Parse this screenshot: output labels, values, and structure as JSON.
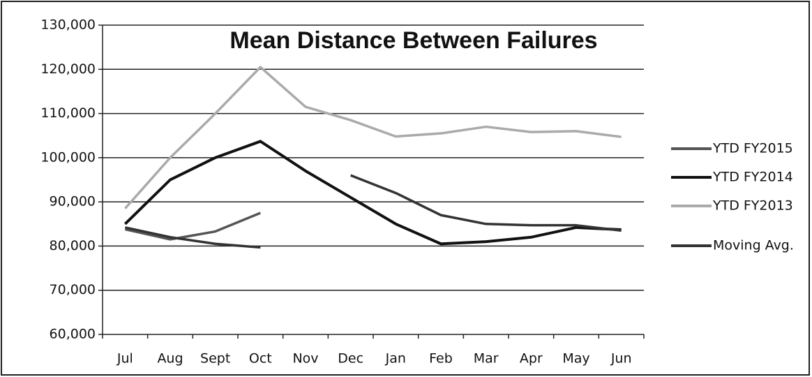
{
  "chart_data": {
    "type": "line",
    "title": "Mean Distance Between Failures",
    "categories": [
      "Jul",
      "Aug",
      "Sept",
      "Oct",
      "Nov",
      "Dec",
      "Jan",
      "Feb",
      "Mar",
      "Apr",
      "May",
      "Jun"
    ],
    "series": [
      {
        "name": "YTD FY2015",
        "color": "#555555",
        "values": [
          83800,
          81500,
          83300,
          87500,
          null,
          null,
          null,
          null,
          null,
          null,
          null,
          null
        ]
      },
      {
        "name": "YTD FY2014",
        "color": "#111111",
        "values": [
          85000,
          95000,
          100000,
          103700,
          97000,
          91000,
          85000,
          80500,
          81000,
          82000,
          84200,
          83700
        ]
      },
      {
        "name": "YTD FY2013",
        "color": "#aaaaaa",
        "values": [
          88500,
          100000,
          110000,
          120500,
          111500,
          108500,
          104800,
          105500,
          107000,
          105800,
          106000,
          104700
        ]
      },
      {
        "name": "Moving Avg.",
        "color": "#333333",
        "values": [
          84200,
          82000,
          80500,
          79700,
          null,
          96000,
          92000,
          87000,
          85000,
          84700,
          84700,
          83500
        ]
      }
    ],
    "ylim": [
      60000,
      130000
    ],
    "yticks": [
      {
        "value": 60000,
        "label": "60,000"
      },
      {
        "value": 70000,
        "label": "70,000"
      },
      {
        "value": 80000,
        "label": "80,000"
      },
      {
        "value": 90000,
        "label": "90,000"
      },
      {
        "value": 100000,
        "label": "100,000"
      },
      {
        "value": 110000,
        "label": "110,000"
      },
      {
        "value": 120000,
        "label": "120,000"
      },
      {
        "value": 130000,
        "label": "130,000"
      }
    ],
    "grid": true,
    "legend": "right"
  }
}
